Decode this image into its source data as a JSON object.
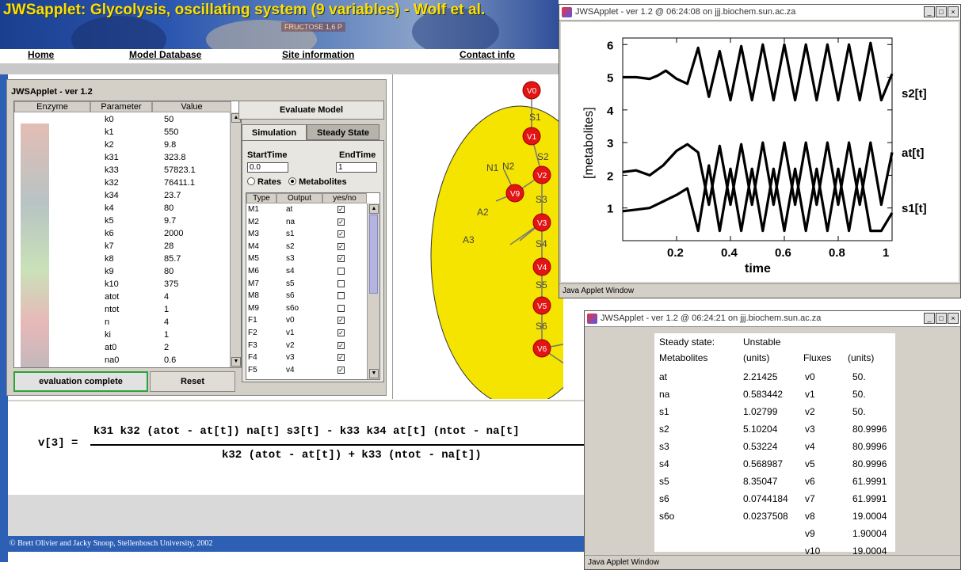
{
  "banner": {
    "title": "JWSapplet: Glycolysis, oscillating system (9 variables) - Wolf et al.",
    "molecule_text": "FRUCTOSE 1,6 P"
  },
  "nav": {
    "home": "Home",
    "model_database": "Model Database",
    "site_information": "Site information",
    "contact_info": "Contact info"
  },
  "applet": {
    "title": "JWSApplet - ver 1.2",
    "param_headers": [
      "Enzyme",
      "Parameter",
      "Value"
    ],
    "params": [
      {
        "name": "k0",
        "value": "50"
      },
      {
        "name": "k1",
        "value": "550"
      },
      {
        "name": "k2",
        "value": "9.8"
      },
      {
        "name": "k31",
        "value": "323.8"
      },
      {
        "name": "k33",
        "value": "57823.1"
      },
      {
        "name": "k32",
        "value": "76411.1"
      },
      {
        "name": "k34",
        "value": "23.7"
      },
      {
        "name": "k4",
        "value": "80"
      },
      {
        "name": "k5",
        "value": "9.7"
      },
      {
        "name": "k6",
        "value": "2000"
      },
      {
        "name": "k7",
        "value": "28"
      },
      {
        "name": "k8",
        "value": "85.7"
      },
      {
        "name": "k9",
        "value": "80"
      },
      {
        "name": "k10",
        "value": "375"
      },
      {
        "name": "atot",
        "value": "4"
      },
      {
        "name": "ntot",
        "value": "1"
      },
      {
        "name": "n",
        "value": "4"
      },
      {
        "name": "ki",
        "value": "1"
      },
      {
        "name": "at0",
        "value": "2"
      },
      {
        "name": "na0",
        "value": "0.6"
      }
    ],
    "evaluation_status": "evaluation complete",
    "reset_label": "Reset",
    "evaluate_label": "Evaluate Model",
    "tab_simulation": "Simulation",
    "tab_steady_state": "Steady State",
    "start_time_label": "StartTime",
    "end_time_label": "EndTime",
    "start_time_value": "0.0",
    "end_time_value": "1",
    "rates_label": "Rates",
    "metabolites_label": "Metabolites",
    "output_headers": [
      "Type",
      "Output",
      "yes/no"
    ],
    "outputs": [
      {
        "type": "M1",
        "output": "at",
        "checked": true
      },
      {
        "type": "M2",
        "output": "na",
        "checked": true
      },
      {
        "type": "M3",
        "output": "s1",
        "checked": true
      },
      {
        "type": "M4",
        "output": "s2",
        "checked": true
      },
      {
        "type": "M5",
        "output": "s3",
        "checked": true
      },
      {
        "type": "M6",
        "output": "s4",
        "checked": false
      },
      {
        "type": "M7",
        "output": "s5",
        "checked": false
      },
      {
        "type": "M8",
        "output": "s6",
        "checked": false
      },
      {
        "type": "M9",
        "output": "s6o",
        "checked": false
      },
      {
        "type": "F1",
        "output": "v0",
        "checked": true
      },
      {
        "type": "F2",
        "output": "v1",
        "checked": true
      },
      {
        "type": "F3",
        "output": "v2",
        "checked": true
      },
      {
        "type": "F4",
        "output": "v3",
        "checked": true
      },
      {
        "type": "F5",
        "output": "v4",
        "checked": true
      }
    ]
  },
  "pathway": {
    "nodes": [
      "V0",
      "V1",
      "V2",
      "V9",
      "V3",
      "V4",
      "V5",
      "V6"
    ],
    "species": [
      "S1",
      "S2",
      "S3",
      "S4",
      "S5",
      "S6",
      "N1",
      "N2",
      "A2",
      "A3"
    ]
  },
  "formula": {
    "lhs": "v[3] =",
    "numerator": "k31 k32 (atot - at[t]) na[t] s3[t] - k33 k34 at[t] (ntot - na[t]",
    "denominator": "k32 (atot - at[t]) + k33 (ntot - na[t])"
  },
  "footer": "© Brett Olivier and Jacky Snoop, Stellenbosch University, 2002",
  "plot_window": {
    "title": "JWSApplet - ver 1.2 @ 06:24:08 on jjj.biochem.sun.ac.za",
    "status": "Java Applet Window"
  },
  "steady_window": {
    "title": "JWSApplet - ver 1.2 @ 06:24:21 on jjj.biochem.sun.ac.za",
    "status": "Java Applet Window",
    "steady_state_label": "Steady state:",
    "steady_state_value": "Unstable",
    "metabolites_label": "Metabolites",
    "units_label": "(units)",
    "fluxes_label": "Fluxes",
    "flux_units_label": "(units)",
    "metabolites": [
      {
        "name": "at",
        "value": "2.21425"
      },
      {
        "name": "na",
        "value": "0.583442"
      },
      {
        "name": "s1",
        "value": "1.02799"
      },
      {
        "name": "s2",
        "value": "5.10204"
      },
      {
        "name": "s3",
        "value": "0.53224"
      },
      {
        "name": "s4",
        "value": "0.568987"
      },
      {
        "name": "s5",
        "value": "8.35047"
      },
      {
        "name": "s6",
        "value": "0.0744184"
      },
      {
        "name": "s6o",
        "value": "0.0237508"
      }
    ],
    "fluxes": [
      {
        "name": "v0",
        "value": "50."
      },
      {
        "name": "v1",
        "value": "50."
      },
      {
        "name": "v2",
        "value": "50."
      },
      {
        "name": "v3",
        "value": "80.9996"
      },
      {
        "name": "v4",
        "value": "80.9996"
      },
      {
        "name": "v5",
        "value": "80.9996"
      },
      {
        "name": "v6",
        "value": "61.9991"
      },
      {
        "name": "v7",
        "value": "61.9991"
      },
      {
        "name": "v8",
        "value": "19.0004"
      },
      {
        "name": "v9",
        "value": "1.90004"
      },
      {
        "name": "v10",
        "value": "19.0004"
      }
    ]
  },
  "chart_data": {
    "type": "line",
    "xlabel": "time",
    "ylabel": "[metabolites]",
    "xlim": [
      0,
      1
    ],
    "ylim": [
      0,
      6.2
    ],
    "xticks": [
      "0.2",
      "0.4",
      "0.6",
      "0.8",
      "1"
    ],
    "yticks": [
      "1",
      "2",
      "3",
      "4",
      "5",
      "6"
    ],
    "series": [
      {
        "name": "s2[t]",
        "x": [
          0,
          0.05,
          0.1,
          0.13,
          0.16,
          0.2,
          0.24,
          0.28,
          0.32,
          0.36,
          0.4,
          0.44,
          0.48,
          0.52,
          0.56,
          0.6,
          0.64,
          0.68,
          0.72,
          0.76,
          0.8,
          0.84,
          0.88,
          0.92,
          0.96,
          1.0
        ],
        "values": [
          5.0,
          5.0,
          4.95,
          5.05,
          5.2,
          4.95,
          4.8,
          5.9,
          4.4,
          5.8,
          4.3,
          5.95,
          4.3,
          6.0,
          4.3,
          6.0,
          4.3,
          6.0,
          4.3,
          6.0,
          4.3,
          6.0,
          4.3,
          6.05,
          4.3,
          5.1
        ]
      },
      {
        "name": "at[t]",
        "x": [
          0,
          0.05,
          0.1,
          0.15,
          0.2,
          0.24,
          0.28,
          0.32,
          0.36,
          0.4,
          0.44,
          0.48,
          0.52,
          0.56,
          0.6,
          0.64,
          0.68,
          0.72,
          0.76,
          0.8,
          0.84,
          0.88,
          0.92,
          0.96,
          1.0
        ],
        "values": [
          2.1,
          2.15,
          2.0,
          2.3,
          2.75,
          2.95,
          2.7,
          1.1,
          2.9,
          1.1,
          2.95,
          1.1,
          3.0,
          1.1,
          3.0,
          1.1,
          3.0,
          1.1,
          3.0,
          1.1,
          3.0,
          1.1,
          3.0,
          1.1,
          2.7
        ]
      },
      {
        "name": "s1[t]",
        "x": [
          0,
          0.05,
          0.1,
          0.15,
          0.2,
          0.24,
          0.28,
          0.32,
          0.36,
          0.4,
          0.44,
          0.48,
          0.52,
          0.56,
          0.6,
          0.64,
          0.68,
          0.72,
          0.76,
          0.8,
          0.84,
          0.88,
          0.92,
          0.96,
          1.0
        ],
        "values": [
          0.9,
          0.95,
          1.0,
          1.2,
          1.4,
          1.6,
          0.3,
          2.3,
          0.3,
          2.2,
          0.3,
          2.2,
          0.3,
          2.2,
          0.3,
          2.2,
          0.3,
          2.2,
          0.3,
          2.2,
          0.3,
          2.2,
          0.3,
          0.3,
          0.85
        ]
      }
    ]
  }
}
